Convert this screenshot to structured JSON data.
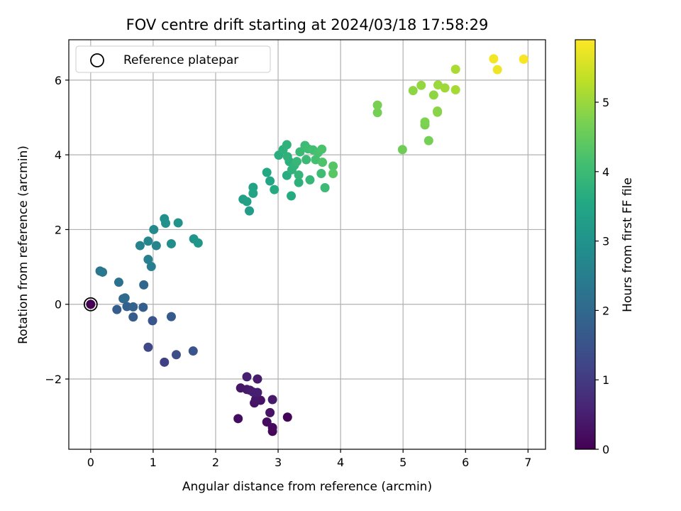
{
  "chart_data": {
    "type": "scatter",
    "title": "FOV centre drift starting at 2024/03/18 17:58:29",
    "xlabel": "Angular distance from reference (arcmin)",
    "ylabel": "Rotation from reference (arcmin)",
    "xlim": [
      -0.35,
      7.28
    ],
    "ylim": [
      -3.88,
      7.08
    ],
    "xticks": [
      0,
      1,
      2,
      3,
      4,
      5,
      6,
      7
    ],
    "yticks": [
      -2,
      0,
      2,
      4,
      6
    ],
    "xtick_labels": [
      "0",
      "1",
      "2",
      "3",
      "4",
      "5",
      "6",
      "7"
    ],
    "ytick_labels": [
      "−2",
      "0",
      "2",
      "4",
      "6"
    ],
    "grid": true,
    "legend": {
      "position": "top-left",
      "entries": [
        "Reference platepar"
      ]
    },
    "reference_point": {
      "x": 0,
      "y": 0
    },
    "colorbar": {
      "label": "Hours from first FF file",
      "colormap": "viridis",
      "range": [
        0,
        5.9
      ],
      "ticks": [
        0,
        1,
        2,
        3,
        4,
        5
      ],
      "tick_labels": [
        "0",
        "1",
        "2",
        "3",
        "4",
        "5"
      ]
    },
    "points": [
      {
        "x": 2.36,
        "y": -3.06,
        "h": 0.2
      },
      {
        "x": 2.4,
        "y": -2.24,
        "h": 0.35
      },
      {
        "x": 2.5,
        "y": -1.94,
        "h": 0.5
      },
      {
        "x": 2.5,
        "y": -2.28,
        "h": 0.4
      },
      {
        "x": 2.55,
        "y": -2.3,
        "h": 0.45
      },
      {
        "x": 2.6,
        "y": -2.35,
        "h": 0.5
      },
      {
        "x": 2.62,
        "y": -2.64,
        "h": 0.3
      },
      {
        "x": 2.64,
        "y": -2.55,
        "h": 0.35
      },
      {
        "x": 2.67,
        "y": -2.36,
        "h": 0.5
      },
      {
        "x": 2.67,
        "y": -2.0,
        "h": 0.45
      },
      {
        "x": 2.72,
        "y": -2.57,
        "h": 0.3
      },
      {
        "x": 2.82,
        "y": -3.15,
        "h": 0.2
      },
      {
        "x": 2.87,
        "y": -2.9,
        "h": 0.3
      },
      {
        "x": 2.91,
        "y": -2.55,
        "h": 0.4
      },
      {
        "x": 2.91,
        "y": -3.3,
        "h": 0.15
      },
      {
        "x": 2.91,
        "y": -3.4,
        "h": 0.1
      },
      {
        "x": 3.15,
        "y": -3.02,
        "h": 0.05
      },
      {
        "x": 0.92,
        "y": -1.15,
        "h": 1.3
      },
      {
        "x": 1.18,
        "y": -1.55,
        "h": 1.1
      },
      {
        "x": 1.37,
        "y": -1.35,
        "h": 1.4
      },
      {
        "x": 1.64,
        "y": -1.25,
        "h": 1.55
      },
      {
        "x": 0.42,
        "y": -0.14,
        "h": 1.75
      },
      {
        "x": 0.58,
        "y": -0.06,
        "h": 1.8
      },
      {
        "x": 0.68,
        "y": -0.07,
        "h": 1.85
      },
      {
        "x": 0.68,
        "y": -0.34,
        "h": 1.7
      },
      {
        "x": 0.84,
        "y": -0.08,
        "h": 1.75
      },
      {
        "x": 0.99,
        "y": -0.44,
        "h": 1.55
      },
      {
        "x": 1.29,
        "y": -0.33,
        "h": 1.65
      },
      {
        "x": 0.52,
        "y": 0.15,
        "h": 2.0
      },
      {
        "x": 0.55,
        "y": 0.17,
        "h": 2.05
      },
      {
        "x": 0.45,
        "y": 0.59,
        "h": 2.2
      },
      {
        "x": 0.85,
        "y": 0.52,
        "h": 1.95
      },
      {
        "x": 0.15,
        "y": 0.89,
        "h": 2.3
      },
      {
        "x": 0.19,
        "y": 0.86,
        "h": 2.35
      },
      {
        "x": 0.92,
        "y": 1.2,
        "h": 2.55
      },
      {
        "x": 0.97,
        "y": 1.01,
        "h": 2.5
      },
      {
        "x": 0.79,
        "y": 1.57,
        "h": 2.6
      },
      {
        "x": 0.92,
        "y": 1.69,
        "h": 2.7
      },
      {
        "x": 1.05,
        "y": 1.57,
        "h": 2.65
      },
      {
        "x": 1.01,
        "y": 2.0,
        "h": 2.75
      },
      {
        "x": 1.18,
        "y": 2.29,
        "h": 2.9
      },
      {
        "x": 1.2,
        "y": 2.17,
        "h": 2.95
      },
      {
        "x": 1.29,
        "y": 1.62,
        "h": 2.85
      },
      {
        "x": 1.4,
        "y": 2.18,
        "h": 3.0
      },
      {
        "x": 1.65,
        "y": 1.75,
        "h": 3.05
      },
      {
        "x": 1.72,
        "y": 1.64,
        "h": 3.1
      },
      {
        "x": 2.44,
        "y": 2.81,
        "h": 3.3
      },
      {
        "x": 2.5,
        "y": 2.75,
        "h": 3.35
      },
      {
        "x": 2.54,
        "y": 2.5,
        "h": 3.25
      },
      {
        "x": 2.6,
        "y": 3.13,
        "h": 3.4
      },
      {
        "x": 2.6,
        "y": 2.97,
        "h": 3.45
      },
      {
        "x": 2.82,
        "y": 3.53,
        "h": 3.55
      },
      {
        "x": 2.87,
        "y": 3.3,
        "h": 3.5
      },
      {
        "x": 2.94,
        "y": 3.07,
        "h": 3.6
      },
      {
        "x": 3.01,
        "y": 3.99,
        "h": 3.7
      },
      {
        "x": 3.08,
        "y": 4.14,
        "h": 3.75
      },
      {
        "x": 3.14,
        "y": 4.27,
        "h": 3.8
      },
      {
        "x": 3.15,
        "y": 3.95,
        "h": 3.78
      },
      {
        "x": 3.14,
        "y": 3.45,
        "h": 3.65
      },
      {
        "x": 3.18,
        "y": 3.82,
        "h": 3.72
      },
      {
        "x": 3.21,
        "y": 2.9,
        "h": 3.6
      },
      {
        "x": 3.22,
        "y": 3.6,
        "h": 3.8
      },
      {
        "x": 3.26,
        "y": 3.72,
        "h": 3.82
      },
      {
        "x": 3.3,
        "y": 3.82,
        "h": 3.9
      },
      {
        "x": 3.33,
        "y": 3.46,
        "h": 3.85
      },
      {
        "x": 3.33,
        "y": 3.26,
        "h": 3.75
      },
      {
        "x": 3.35,
        "y": 4.08,
        "h": 3.95
      },
      {
        "x": 3.43,
        "y": 4.25,
        "h": 4.0
      },
      {
        "x": 3.45,
        "y": 3.87,
        "h": 3.98
      },
      {
        "x": 3.48,
        "y": 4.16,
        "h": 4.05
      },
      {
        "x": 3.51,
        "y": 3.33,
        "h": 3.9
      },
      {
        "x": 3.56,
        "y": 4.13,
        "h": 4.1
      },
      {
        "x": 3.6,
        "y": 3.87,
        "h": 4.12
      },
      {
        "x": 3.64,
        "y": 4.06,
        "h": 4.15
      },
      {
        "x": 3.69,
        "y": 3.5,
        "h": 4.05
      },
      {
        "x": 3.7,
        "y": 4.15,
        "h": 4.2
      },
      {
        "x": 3.71,
        "y": 3.8,
        "h": 4.25
      },
      {
        "x": 3.75,
        "y": 3.12,
        "h": 4.0
      },
      {
        "x": 3.88,
        "y": 3.7,
        "h": 4.3
      },
      {
        "x": 3.88,
        "y": 3.5,
        "h": 4.35
      },
      {
        "x": 4.59,
        "y": 5.33,
        "h": 4.7
      },
      {
        "x": 4.59,
        "y": 5.13,
        "h": 4.65
      },
      {
        "x": 4.99,
        "y": 4.14,
        "h": 4.6
      },
      {
        "x": 5.16,
        "y": 5.72,
        "h": 4.9
      },
      {
        "x": 5.29,
        "y": 5.86,
        "h": 4.95
      },
      {
        "x": 5.35,
        "y": 4.88,
        "h": 4.75
      },
      {
        "x": 5.35,
        "y": 4.8,
        "h": 4.7
      },
      {
        "x": 5.41,
        "y": 4.38,
        "h": 4.65
      },
      {
        "x": 5.49,
        "y": 5.6,
        "h": 4.9
      },
      {
        "x": 5.55,
        "y": 5.14,
        "h": 4.8
      },
      {
        "x": 5.55,
        "y": 5.17,
        "h": 4.85
      },
      {
        "x": 5.56,
        "y": 5.87,
        "h": 5.0
      },
      {
        "x": 5.67,
        "y": 5.79,
        "h": 5.05
      },
      {
        "x": 5.84,
        "y": 6.29,
        "h": 5.15
      },
      {
        "x": 5.84,
        "y": 5.74,
        "h": 5.1
      },
      {
        "x": 6.45,
        "y": 6.57,
        "h": 5.8
      },
      {
        "x": 6.51,
        "y": 6.28,
        "h": 5.75
      },
      {
        "x": 6.93,
        "y": 6.56,
        "h": 5.85
      }
    ]
  }
}
